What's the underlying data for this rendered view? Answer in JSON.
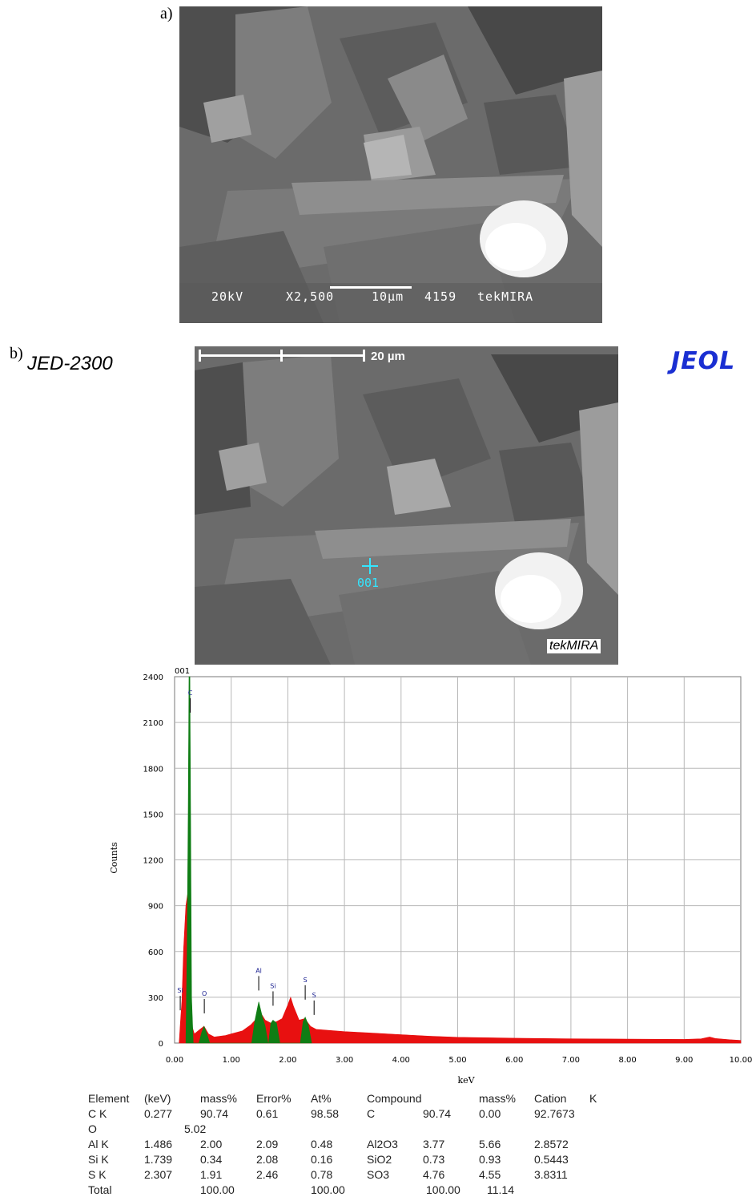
{
  "panel_a": {
    "label": "a)",
    "info": {
      "voltage": "20kV",
      "magnification": "X2,500",
      "scale": "10µm",
      "number": "4159",
      "lab": "tekMIRA"
    }
  },
  "panel_b": {
    "label": "b)",
    "instrument": "JED-2300",
    "logo": "JEOL",
    "scale_label": "20 µm",
    "spot_label": "001",
    "watermark": "tekMIRA"
  },
  "chart_data": {
    "type": "area",
    "spectrum_id": "001",
    "xlabel": "keV",
    "ylabel": "Counts",
    "xlim": [
      0,
      10
    ],
    "ylim": [
      0,
      2400
    ],
    "x_ticks": [
      "0.00",
      "1.00",
      "2.00",
      "3.00",
      "4.00",
      "5.00",
      "6.00",
      "7.00",
      "8.00",
      "9.00",
      "10.00"
    ],
    "y_ticks": [
      "0",
      "300",
      "600",
      "900",
      "1200",
      "1500",
      "1800",
      "2100",
      "2400"
    ],
    "series": [
      {
        "color": "#e81010",
        "points": [
          [
            0.08,
            0
          ],
          [
            0.1,
            120
          ],
          [
            0.13,
            280
          ],
          [
            0.16,
            620
          ],
          [
            0.2,
            900
          ],
          [
            0.24,
            1000
          ],
          [
            0.27,
            300
          ],
          [
            0.3,
            120
          ],
          [
            0.35,
            60
          ],
          [
            0.45,
            90
          ],
          [
            0.52,
            110
          ],
          [
            0.6,
            60
          ],
          [
            0.7,
            40
          ],
          [
            0.9,
            50
          ],
          [
            1.0,
            60
          ],
          [
            1.2,
            80
          ],
          [
            1.35,
            120
          ],
          [
            1.45,
            160
          ],
          [
            1.5,
            210
          ],
          [
            1.6,
            150
          ],
          [
            1.7,
            130
          ],
          [
            1.8,
            140
          ],
          [
            1.9,
            160
          ],
          [
            2.0,
            250
          ],
          [
            2.05,
            300
          ],
          [
            2.1,
            240
          ],
          [
            2.2,
            150
          ],
          [
            2.3,
            160
          ],
          [
            2.4,
            110
          ],
          [
            2.5,
            90
          ],
          [
            3.0,
            75
          ],
          [
            3.5,
            65
          ],
          [
            4.0,
            55
          ],
          [
            4.5,
            45
          ],
          [
            5.0,
            38
          ],
          [
            6.0,
            32
          ],
          [
            7.0,
            28
          ],
          [
            8.0,
            26
          ],
          [
            9.0,
            24
          ],
          [
            9.3,
            28
          ],
          [
            9.45,
            40
          ],
          [
            9.55,
            30
          ],
          [
            9.8,
            22
          ],
          [
            10.0,
            18
          ]
        ]
      },
      {
        "color": "#0f7d14",
        "points": [
          [
            0.2,
            0
          ],
          [
            0.22,
            600
          ],
          [
            0.24,
            1500
          ],
          [
            0.255,
            2400
          ],
          [
            0.27,
            2400
          ],
          [
            0.285,
            1400
          ],
          [
            0.3,
            300
          ],
          [
            0.33,
            0
          ],
          [
            0.43,
            0
          ],
          [
            0.48,
            70
          ],
          [
            0.52,
            110
          ],
          [
            0.57,
            60
          ],
          [
            0.62,
            0
          ],
          [
            1.36,
            0
          ],
          [
            1.42,
            150
          ],
          [
            1.486,
            270
          ],
          [
            1.55,
            170
          ],
          [
            1.6,
            110
          ],
          [
            1.65,
            0
          ],
          [
            1.66,
            0
          ],
          [
            1.7,
            130
          ],
          [
            1.739,
            150
          ],
          [
            1.8,
            130
          ],
          [
            1.86,
            0
          ],
          [
            2.22,
            0
          ],
          [
            2.27,
            140
          ],
          [
            2.307,
            170
          ],
          [
            2.36,
            120
          ],
          [
            2.42,
            0
          ]
        ]
      }
    ],
    "peak_labels": [
      {
        "label": "C",
        "x": 0.277,
        "y": 2280
      },
      {
        "label": "Si",
        "x": 0.1,
        "y": 330
      },
      {
        "label": "O",
        "x": 0.525,
        "y": 310
      },
      {
        "label": "Al",
        "x": 1.486,
        "y": 460
      },
      {
        "label": "Si",
        "x": 1.739,
        "y": 360
      },
      {
        "label": "S",
        "x": 2.307,
        "y": 400
      },
      {
        "label": "S",
        "x": 2.464,
        "y": 300
      }
    ]
  },
  "quant_table": {
    "headers": [
      "Element",
      "(keV)",
      "mass%",
      "Error%",
      "At%",
      "Compound",
      "mass%",
      "Cation",
      "K"
    ],
    "rows": [
      [
        "C K",
        "0.277",
        "90.74",
        "0.61",
        "98.58",
        "C",
        "90.74",
        "0.00",
        "92.7673"
      ],
      [
        "O",
        "",
        "5.02",
        "",
        "",
        "",
        "",
        "",
        ""
      ],
      [
        "Al K",
        "1.486",
        "2.00",
        "2.09",
        "0.48",
        "Al2O3",
        "3.77",
        "5.66",
        "2.8572"
      ],
      [
        "Si K",
        "1.739",
        "0.34",
        "2.08",
        "0.16",
        "SiO2",
        "0.73",
        "0.93",
        "0.5443"
      ],
      [
        "S K",
        "2.307",
        "1.91",
        "2.46",
        "0.78",
        "SO3",
        "4.76",
        "4.55",
        "3.8311"
      ],
      [
        "Total",
        "",
        "100.00",
        "",
        "100.00",
        "",
        "100.00",
        "11.14",
        ""
      ]
    ]
  }
}
